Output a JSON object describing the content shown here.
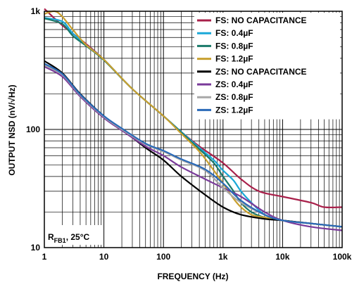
{
  "chart_data": {
    "type": "line",
    "xlabel": "FREQUENCY (Hz)",
    "ylabel": "OUTPUT NSD (nV/√Hz)",
    "x_scale": "log",
    "y_scale": "log",
    "xlim": [
      1,
      100000
    ],
    "ylim": [
      10,
      1000
    ],
    "grid": true,
    "legend_position": "top-right",
    "x_ticks": [
      {
        "value": 1,
        "label": "1"
      },
      {
        "value": 10,
        "label": "10"
      },
      {
        "value": 100,
        "label": "100"
      },
      {
        "value": 1000,
        "label": "1k"
      },
      {
        "value": 10000,
        "label": "10k"
      },
      {
        "value": 100000,
        "label": "100k"
      }
    ],
    "y_ticks": [
      {
        "value": 10,
        "label": "10"
      },
      {
        "value": 100,
        "label": "100"
      },
      {
        "value": 1000,
        "label": "1k"
      }
    ],
    "annotation": {
      "main": "R",
      "sub": "FB1",
      "rest": ", 25°C"
    },
    "series": [
      {
        "name": "FS: NO CAPACITANCE",
        "color": "#a8204a",
        "points": [
          [
            1,
            1050
          ],
          [
            2,
            760
          ],
          [
            5,
            530
          ],
          [
            10,
            390
          ],
          [
            30,
            220
          ],
          [
            100,
            130
          ],
          [
            200,
            95
          ],
          [
            400,
            72
          ],
          [
            1000,
            52
          ],
          [
            2000,
            38
          ],
          [
            4000,
            30
          ],
          [
            10000,
            27
          ],
          [
            30000,
            24
          ],
          [
            50000,
            22
          ],
          [
            100000,
            22
          ]
        ]
      },
      {
        "name": "FS: 0.4µF",
        "color": "#1aa8d8",
        "points": [
          [
            1,
            880
          ],
          [
            2,
            820
          ],
          [
            3,
            650
          ],
          [
            5,
            520
          ],
          [
            10,
            390
          ],
          [
            30,
            220
          ],
          [
            100,
            130
          ],
          [
            200,
            95
          ],
          [
            400,
            70
          ],
          [
            700,
            55
          ],
          [
            1000,
            45
          ],
          [
            1500,
            37
          ],
          [
            2000,
            30
          ],
          [
            3000,
            24
          ],
          [
            5000,
            19
          ],
          [
            10000,
            17
          ],
          [
            30000,
            16
          ],
          [
            100000,
            15
          ]
        ]
      },
      {
        "name": "FS: 0.8µF",
        "color": "#1a7a6a",
        "points": [
          [
            1,
            870
          ],
          [
            2,
            780
          ],
          [
            3,
            620
          ],
          [
            5,
            510
          ],
          [
            10,
            385
          ],
          [
            30,
            220
          ],
          [
            100,
            130
          ],
          [
            200,
            94
          ],
          [
            400,
            68
          ],
          [
            700,
            52
          ],
          [
            1000,
            40
          ],
          [
            1500,
            30
          ],
          [
            2000,
            24
          ],
          [
            3000,
            20
          ],
          [
            5000,
            18
          ],
          [
            10000,
            17
          ],
          [
            30000,
            16
          ],
          [
            100000,
            15
          ]
        ]
      },
      {
        "name": "FS: 1.2µF",
        "color": "#c8a030",
        "points": [
          [
            1,
            950
          ],
          [
            1.5,
            1000
          ],
          [
            2,
            900
          ],
          [
            3,
            700
          ],
          [
            5,
            520
          ],
          [
            10,
            390
          ],
          [
            30,
            220
          ],
          [
            100,
            130
          ],
          [
            200,
            92
          ],
          [
            400,
            65
          ],
          [
            700,
            45
          ],
          [
            1000,
            35
          ],
          [
            1500,
            26
          ],
          [
            2000,
            22
          ],
          [
            3000,
            19
          ],
          [
            5000,
            18
          ],
          [
            10000,
            17
          ],
          [
            30000,
            16
          ],
          [
            100000,
            15
          ]
        ]
      },
      {
        "name": "ZS: NO CAPACITANCE",
        "color": "#000000",
        "points": [
          [
            1,
            380
          ],
          [
            2,
            300
          ],
          [
            4,
            200
          ],
          [
            10,
            130
          ],
          [
            20,
            100
          ],
          [
            50,
            70
          ],
          [
            100,
            55
          ],
          [
            200,
            40
          ],
          [
            500,
            28
          ],
          [
            1000,
            22
          ],
          [
            2000,
            19
          ],
          [
            5000,
            17.5
          ],
          [
            10000,
            17
          ],
          [
            30000,
            16
          ],
          [
            100000,
            15
          ]
        ]
      },
      {
        "name": "ZS: 0.4µF",
        "color": "#7a3a9a",
        "points": [
          [
            1,
            340
          ],
          [
            2,
            280
          ],
          [
            4,
            190
          ],
          [
            10,
            125
          ],
          [
            20,
            98
          ],
          [
            50,
            72
          ],
          [
            100,
            60
          ],
          [
            200,
            48
          ],
          [
            500,
            38
          ],
          [
            1000,
            32
          ],
          [
            2000,
            27
          ],
          [
            5000,
            20
          ],
          [
            10000,
            17
          ],
          [
            30000,
            15
          ],
          [
            100000,
            14
          ]
        ]
      },
      {
        "name": "ZS: 0.8µF",
        "color": "#a8a8a8",
        "points": [
          [
            1,
            350
          ],
          [
            2,
            290
          ],
          [
            4,
            195
          ],
          [
            10,
            128
          ],
          [
            20,
            100
          ],
          [
            50,
            75
          ],
          [
            100,
            65
          ],
          [
            200,
            55
          ],
          [
            500,
            45
          ],
          [
            1000,
            32
          ],
          [
            2000,
            24
          ],
          [
            5000,
            19
          ],
          [
            10000,
            17
          ],
          [
            30000,
            16
          ],
          [
            100000,
            15
          ]
        ]
      },
      {
        "name": "ZS: 1.2µF",
        "color": "#2a6ab8",
        "points": [
          [
            1,
            360
          ],
          [
            2,
            295
          ],
          [
            4,
            198
          ],
          [
            10,
            130
          ],
          [
            20,
            102
          ],
          [
            50,
            76
          ],
          [
            100,
            66
          ],
          [
            200,
            56
          ],
          [
            500,
            46
          ],
          [
            1000,
            35
          ],
          [
            2000,
            25
          ],
          [
            5000,
            19
          ],
          [
            10000,
            17
          ],
          [
            30000,
            16
          ],
          [
            100000,
            15
          ]
        ]
      }
    ]
  }
}
